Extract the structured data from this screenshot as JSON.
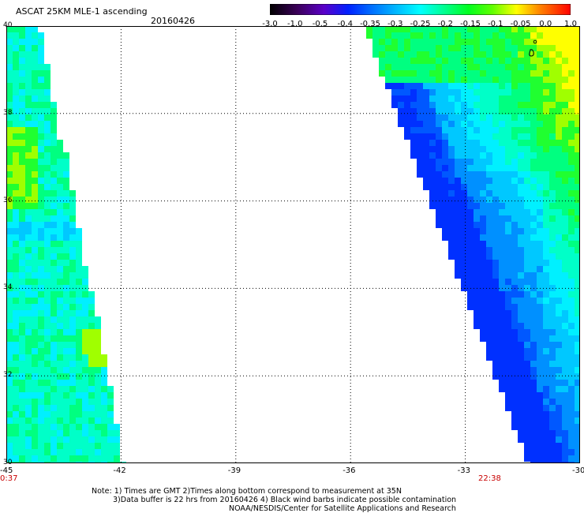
{
  "header": {
    "title": "ASCAT 25KM MLE-1 ascending",
    "date": "20160426"
  },
  "colorbar": {
    "tick_labels": [
      "-3.0",
      "-1.0",
      "-0.5",
      "-0.4",
      "-0.35",
      "-0.3",
      "-0.25",
      "-0.2",
      "-0.15",
      "-0.1",
      "-0.05",
      "0.0",
      "1.0"
    ]
  },
  "map": {
    "x_labels": [
      "-45",
      "-42",
      "-39",
      "-36",
      "-33",
      "-30"
    ],
    "y_labels": [
      "40",
      "38",
      "36",
      "34",
      "32",
      "30"
    ],
    "time_left": "0:37",
    "time_right": "22:38",
    "lon_range": [
      -45,
      -30
    ],
    "lat_range": [
      30,
      40
    ],
    "grid": "dotted"
  },
  "notes": {
    "line1": "Note: 1) Times are GMT 2)Times along bottom correspond to measurement at 35N",
    "line2": "3)Data buffer is 22 hrs from 20160426 4) Black wind barbs indicate possible contamination",
    "line3": "NOAA/NESDIS/Center for Satellite Applications and Research"
  },
  "colors": {
    "background": "#ffffff",
    "time_label": "#c80000"
  }
}
